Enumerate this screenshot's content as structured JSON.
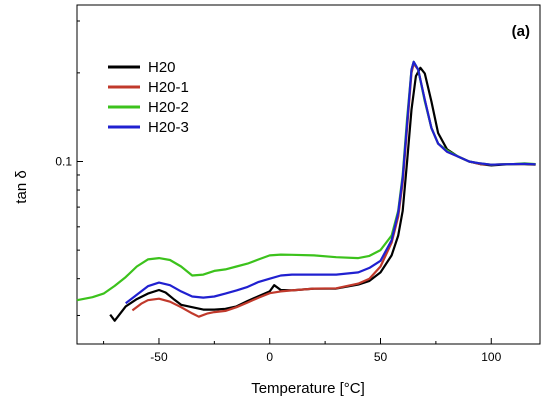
{
  "chart_data": {
    "type": "line",
    "panel_label": "(a)",
    "xlabel": "Temperature [°C]",
    "ylabel": "tan δ",
    "xlim": [
      -87,
      122
    ],
    "x_ticks": [
      -50,
      0,
      50,
      100
    ],
    "y_scale": "log",
    "ylim": [
      0.024,
      0.34
    ],
    "y_tick_labels": [
      {
        "value": 0.1,
        "label": "0.1"
      }
    ],
    "legend_position": "top-left",
    "grid": false,
    "series": [
      {
        "name": "H20",
        "color": "#000000",
        "points": [
          [
            -72,
            0.0302
          ],
          [
            -70,
            0.0288
          ],
          [
            -65,
            0.0322
          ],
          [
            -60,
            0.0341
          ],
          [
            -55,
            0.0356
          ],
          [
            -50,
            0.0366
          ],
          [
            -47,
            0.0359
          ],
          [
            -43,
            0.0339
          ],
          [
            -40,
            0.0326
          ],
          [
            -35,
            0.032
          ],
          [
            -30,
            0.0314
          ],
          [
            -25,
            0.0314
          ],
          [
            -20,
            0.0316
          ],
          [
            -15,
            0.0322
          ],
          [
            -10,
            0.0336
          ],
          [
            -5,
            0.0349
          ],
          [
            0,
            0.0362
          ],
          [
            2,
            0.038
          ],
          [
            5,
            0.0366
          ],
          [
            10,
            0.0365
          ],
          [
            20,
            0.037
          ],
          [
            30,
            0.037
          ],
          [
            40,
            0.0382
          ],
          [
            45,
            0.0393
          ],
          [
            50,
            0.042
          ],
          [
            55,
            0.048
          ],
          [
            58,
            0.056
          ],
          [
            60,
            0.068
          ],
          [
            62,
            0.1
          ],
          [
            64,
            0.15
          ],
          [
            66,
            0.195
          ],
          [
            68,
            0.208
          ],
          [
            70,
            0.199
          ],
          [
            73,
            0.16
          ],
          [
            76,
            0.125
          ],
          [
            80,
            0.11
          ],
          [
            85,
            0.104
          ],
          [
            90,
            0.1
          ],
          [
            95,
            0.098
          ],
          [
            100,
            0.097
          ],
          [
            105,
            0.0976
          ],
          [
            110,
            0.098
          ],
          [
            115,
            0.098
          ],
          [
            120,
            0.0975
          ]
        ]
      },
      {
        "name": "H20-1",
        "color": "#c0392b",
        "points": [
          [
            -62,
            0.0312
          ],
          [
            -58,
            0.0329
          ],
          [
            -55,
            0.0338
          ],
          [
            -50,
            0.0342
          ],
          [
            -45,
            0.0334
          ],
          [
            -40,
            0.032
          ],
          [
            -35,
            0.0305
          ],
          [
            -32,
            0.0297
          ],
          [
            -28,
            0.0305
          ],
          [
            -25,
            0.0308
          ],
          [
            -20,
            0.0311
          ],
          [
            -15,
            0.032
          ],
          [
            -10,
            0.0332
          ],
          [
            -5,
            0.0345
          ],
          [
            0,
            0.0357
          ],
          [
            5,
            0.0362
          ],
          [
            10,
            0.0365
          ],
          [
            20,
            0.037
          ],
          [
            30,
            0.0371
          ],
          [
            40,
            0.0385
          ],
          [
            45,
            0.04
          ],
          [
            50,
            0.044
          ],
          [
            55,
            0.053
          ],
          [
            58,
            0.065
          ],
          [
            60,
            0.085
          ],
          [
            62,
            0.13
          ],
          [
            64,
            0.2
          ],
          [
            65,
            0.215
          ],
          [
            67,
            0.205
          ],
          [
            70,
            0.162
          ],
          [
            73,
            0.13
          ],
          [
            76,
            0.115
          ],
          [
            80,
            0.108
          ],
          [
            85,
            0.104
          ],
          [
            90,
            0.1
          ],
          [
            95,
            0.098
          ],
          [
            100,
            0.0975
          ],
          [
            105,
            0.0978
          ],
          [
            110,
            0.098
          ],
          [
            115,
            0.0982
          ],
          [
            120,
            0.0978
          ]
        ]
      },
      {
        "name": "H20-2",
        "color": "#3cc21c",
        "points": [
          [
            -87,
            0.0338
          ],
          [
            -80,
            0.0346
          ],
          [
            -75,
            0.0356
          ],
          [
            -70,
            0.0378
          ],
          [
            -65,
            0.0405
          ],
          [
            -60,
            0.044
          ],
          [
            -55,
            0.0465
          ],
          [
            -50,
            0.047
          ],
          [
            -45,
            0.0463
          ],
          [
            -40,
            0.044
          ],
          [
            -35,
            0.041
          ],
          [
            -30,
            0.0413
          ],
          [
            -25,
            0.0425
          ],
          [
            -20,
            0.043
          ],
          [
            -15,
            0.044
          ],
          [
            -10,
            0.045
          ],
          [
            -5,
            0.0465
          ],
          [
            0,
            0.048
          ],
          [
            5,
            0.0483
          ],
          [
            10,
            0.0482
          ],
          [
            20,
            0.048
          ],
          [
            30,
            0.0473
          ],
          [
            40,
            0.047
          ],
          [
            45,
            0.0478
          ],
          [
            50,
            0.05
          ],
          [
            55,
            0.056
          ],
          [
            58,
            0.068
          ],
          [
            60,
            0.09
          ],
          [
            62,
            0.14
          ],
          [
            64,
            0.205
          ],
          [
            65,
            0.218
          ],
          [
            67,
            0.205
          ],
          [
            70,
            0.16
          ],
          [
            73,
            0.13
          ],
          [
            76,
            0.115
          ],
          [
            80,
            0.109
          ],
          [
            85,
            0.104
          ],
          [
            90,
            0.1
          ],
          [
            95,
            0.0985
          ],
          [
            100,
            0.0975
          ],
          [
            105,
            0.0978
          ],
          [
            110,
            0.098
          ],
          [
            115,
            0.0985
          ],
          [
            120,
            0.098
          ]
        ]
      },
      {
        "name": "H20-3",
        "color": "#2020d0",
        "points": [
          [
            -65,
            0.033
          ],
          [
            -60,
            0.0353
          ],
          [
            -55,
            0.0377
          ],
          [
            -50,
            0.0388
          ],
          [
            -45,
            0.038
          ],
          [
            -40,
            0.0362
          ],
          [
            -35,
            0.0348
          ],
          [
            -30,
            0.0345
          ],
          [
            -25,
            0.0348
          ],
          [
            -20,
            0.0356
          ],
          [
            -15,
            0.0365
          ],
          [
            -10,
            0.0375
          ],
          [
            -5,
            0.039
          ],
          [
            0,
            0.04
          ],
          [
            5,
            0.041
          ],
          [
            10,
            0.0413
          ],
          [
            20,
            0.0413
          ],
          [
            30,
            0.0413
          ],
          [
            40,
            0.042
          ],
          [
            45,
            0.0435
          ],
          [
            50,
            0.046
          ],
          [
            55,
            0.054
          ],
          [
            58,
            0.067
          ],
          [
            60,
            0.088
          ],
          [
            62,
            0.135
          ],
          [
            64,
            0.205
          ],
          [
            65,
            0.218
          ],
          [
            67,
            0.205
          ],
          [
            70,
            0.162
          ],
          [
            73,
            0.13
          ],
          [
            76,
            0.115
          ],
          [
            80,
            0.108
          ],
          [
            85,
            0.104
          ],
          [
            90,
            0.1
          ],
          [
            95,
            0.0985
          ],
          [
            100,
            0.0975
          ],
          [
            105,
            0.0978
          ],
          [
            110,
            0.098
          ],
          [
            115,
            0.0982
          ],
          [
            120,
            0.0978
          ]
        ]
      }
    ]
  }
}
